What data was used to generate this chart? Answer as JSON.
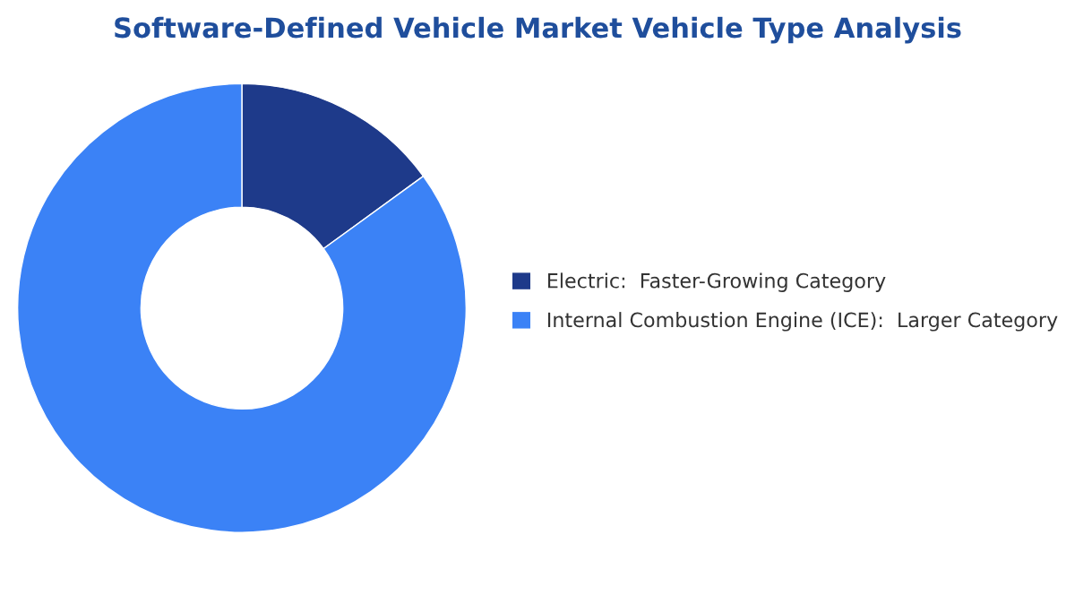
{
  "chart_data": {
    "type": "donut",
    "title": "Software-Defined Vehicle Market Vehicle Type Analysis",
    "categories": [
      "Electric:  Faster-Growing Category",
      "Internal Combustion Engine (ICE):  Larger Category"
    ],
    "values": [
      15,
      85
    ],
    "colors": [
      "#1e3a8a",
      "#3b82f6"
    ],
    "legend": "right"
  }
}
